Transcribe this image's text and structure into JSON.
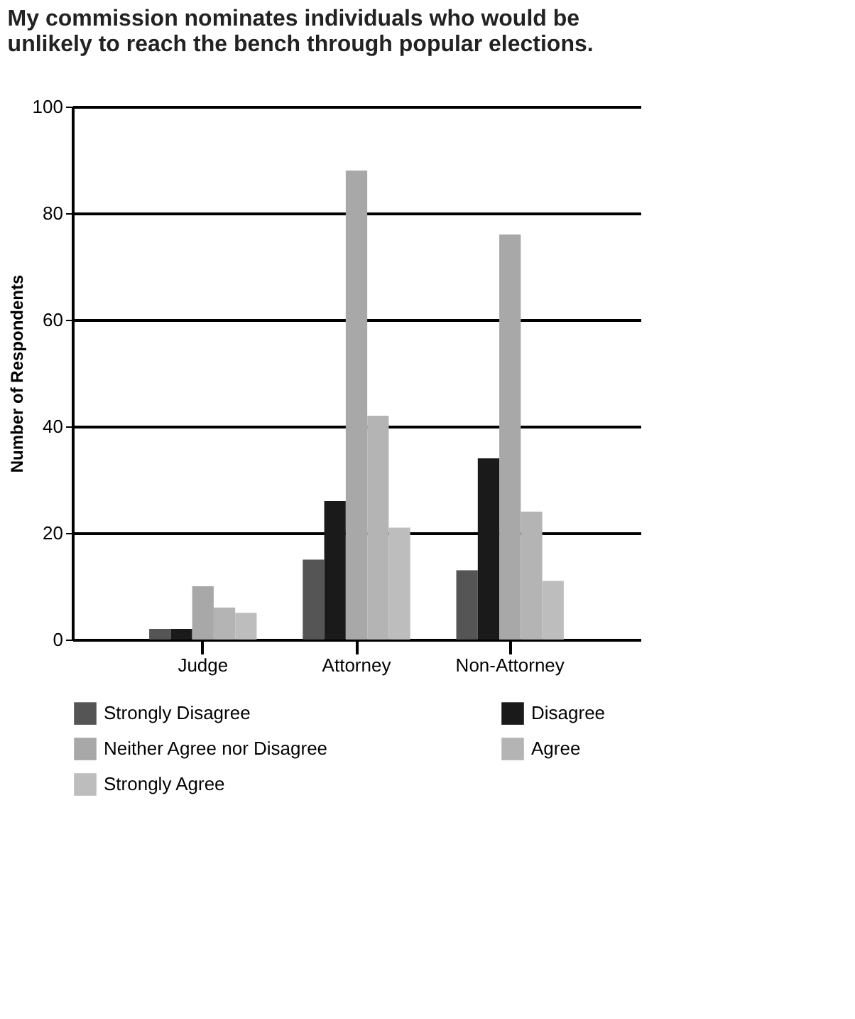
{
  "chart_data": {
    "type": "bar",
    "title": [
      "My commission nominates individuals who would be",
      "unlikely to reach the bench through popular elections."
    ],
    "ylabel": "Number of Respondents",
    "categories": [
      "Judge",
      "Attorney",
      "Non-Attorney"
    ],
    "series": [
      {
        "name": "Strongly Disagree",
        "color": "#555555",
        "values": [
          2,
          15,
          13
        ]
      },
      {
        "name": "Disagree",
        "color": "#1a1a1a",
        "values": [
          2,
          26,
          34
        ]
      },
      {
        "name": "Neither Agree nor Disagree",
        "color": "#a8a8a8",
        "values": [
          10,
          88,
          76
        ]
      },
      {
        "name": "Agree",
        "color": "#b4b4b4",
        "values": [
          6,
          42,
          24
        ]
      },
      {
        "name": "Strongly Agree",
        "color": "#bdbdbd",
        "values": [
          5,
          21,
          11
        ]
      }
    ],
    "ylim": [
      0,
      100
    ],
    "yticks": [
      0,
      20,
      40,
      60,
      80,
      100
    ],
    "grid": "y",
    "legend": "bottom"
  }
}
